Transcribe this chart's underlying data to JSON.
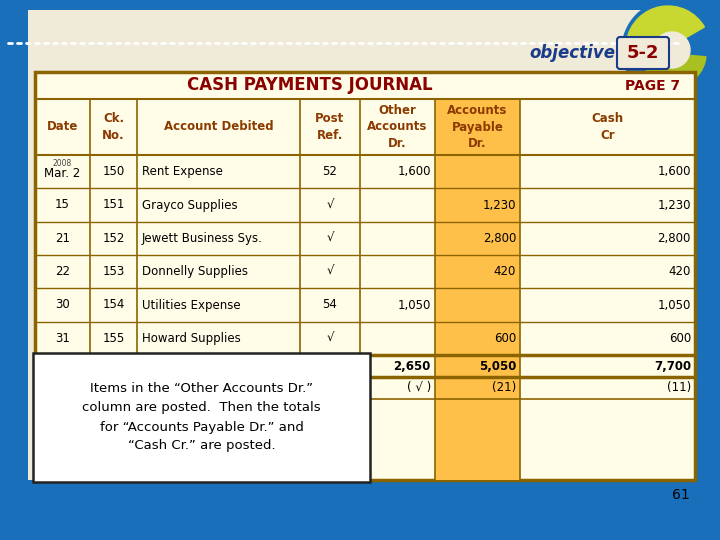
{
  "bg_color": "#1a6fba",
  "table_bg": "#fffde8",
  "title": "CASH PAYMENTS JOURNAL",
  "page": "PAGE 7",
  "objective_text": "objective",
  "objective_num": "5-2",
  "data_rows": [
    [
      "2008\nMar. 2",
      "150",
      "Rent Expense",
      "52",
      "1,600",
      "",
      "1,600"
    ],
    [
      "15",
      "151",
      "Grayco Supplies",
      "√",
      "",
      "1,230",
      "1,230"
    ],
    [
      "21",
      "152",
      "Jewett Business Sys.",
      "√",
      "",
      "2,800",
      "2,800"
    ],
    [
      "22",
      "153",
      "Donnelly Supplies",
      "√",
      "",
      "420",
      "420"
    ],
    [
      "30",
      "154",
      "Utilities Expense",
      "54",
      "1,050",
      "",
      "1,050"
    ],
    [
      "31",
      "155",
      "Howard Supplies",
      "√",
      "",
      "600",
      "600"
    ]
  ],
  "totals_row": [
    "",
    "",
    "",
    "",
    "2,650",
    "5,050",
    "7,700"
  ],
  "posting_row": [
    "",
    "",
    "",
    "",
    "( √ )",
    "(21)",
    "(11)"
  ],
  "note_text": "Items in the “Other Accounts Dr.”\ncolumn are posted.  Then the totals\nfor “Accounts Payable Dr.” and\n“Cash Cr.” are posted.",
  "page_num": "61",
  "border_color": "#8b6400",
  "title_color": "#8b0000",
  "header_text_color": "#8b3a00",
  "ap_col_color": "#ffc04a",
  "dot_color": "#ffffff"
}
